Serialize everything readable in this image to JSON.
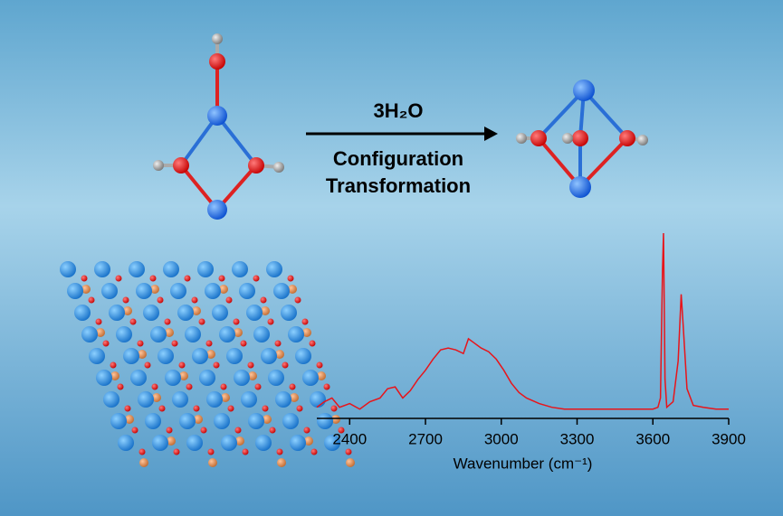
{
  "reaction": {
    "reagent": "3H₂O",
    "line1": "Configuration",
    "line2": "Transformation"
  },
  "chart_data": {
    "type": "line",
    "x_label": "Wavenumber (cm⁻¹)",
    "xlim": [
      2270,
      3900
    ],
    "xticks": [
      2400,
      2700,
      3000,
      3300,
      3600,
      3900
    ],
    "ylim": [
      0,
      100
    ],
    "series": [
      {
        "name": null,
        "color": "#e8141a",
        "x": [
          2270,
          2300,
          2330,
          2360,
          2400,
          2440,
          2480,
          2520,
          2550,
          2580,
          2610,
          2640,
          2670,
          2700,
          2730,
          2760,
          2790,
          2820,
          2850,
          2870,
          2890,
          2920,
          2950,
          2980,
          3010,
          3040,
          3070,
          3100,
          3150,
          3200,
          3250,
          3300,
          3350,
          3400,
          3450,
          3500,
          3550,
          3600,
          3620,
          3630,
          3638,
          3642,
          3648,
          3655,
          3680,
          3700,
          3712,
          3720,
          3735,
          3760,
          3800,
          3850,
          3900
        ],
        "values": [
          6,
          9,
          11,
          6,
          8,
          5,
          9,
          11,
          16,
          17,
          11,
          15,
          21,
          26,
          32,
          37,
          38,
          37,
          35,
          43,
          41,
          38,
          36,
          32,
          26,
          19,
          14,
          11,
          8,
          6,
          5,
          5,
          5,
          5,
          5,
          5,
          5,
          5,
          6,
          11,
          80,
          100,
          21,
          6,
          9,
          31,
          67,
          50,
          16,
          7,
          6,
          5,
          5
        ]
      }
    ]
  }
}
